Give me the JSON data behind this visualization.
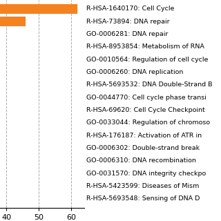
{
  "categories": [
    "R-HSA-1640170: Cell Cycle",
    "R-HSA-73894: DNA repair",
    "GO-0006281: DNA repair",
    "R-HSA-8953854: Metabolism of RNA",
    "GO-0010564: Regulation of cell cycle",
    "GO-0006260: DNA replication",
    "R-HSA-5693532: DNA Double-Strand B",
    "GO-0044770: Cell cycle phase transi",
    "R-HSA-69620: Cell Cycle Checkpoint",
    "GO-0033044: Regulation of chromoso",
    "R-HSA-176187: Activation of ATR in",
    "GO-0006302: Double-strand break",
    "GO-0006310: DNA recombination",
    "GO-0031570: DNA integrity checkpo",
    "R-HSA-5423599: Diseases of Mism",
    "R-HSA-5693548: Sensing of DNA D"
  ],
  "values": [
    62,
    46,
    0,
    0,
    0,
    0,
    0,
    0,
    0,
    0,
    0,
    0,
    0,
    0,
    0,
    0
  ],
  "bar_color": "#F5821E",
  "xlim_min": 38,
  "xlim_max": 64,
  "xticks": [
    40,
    50,
    60
  ],
  "grid_color": "#aaaaaa",
  "background_color": "#ffffff",
  "bar_height": 0.75,
  "label_fontsize": 6.8,
  "tick_fontsize": 8.0
}
